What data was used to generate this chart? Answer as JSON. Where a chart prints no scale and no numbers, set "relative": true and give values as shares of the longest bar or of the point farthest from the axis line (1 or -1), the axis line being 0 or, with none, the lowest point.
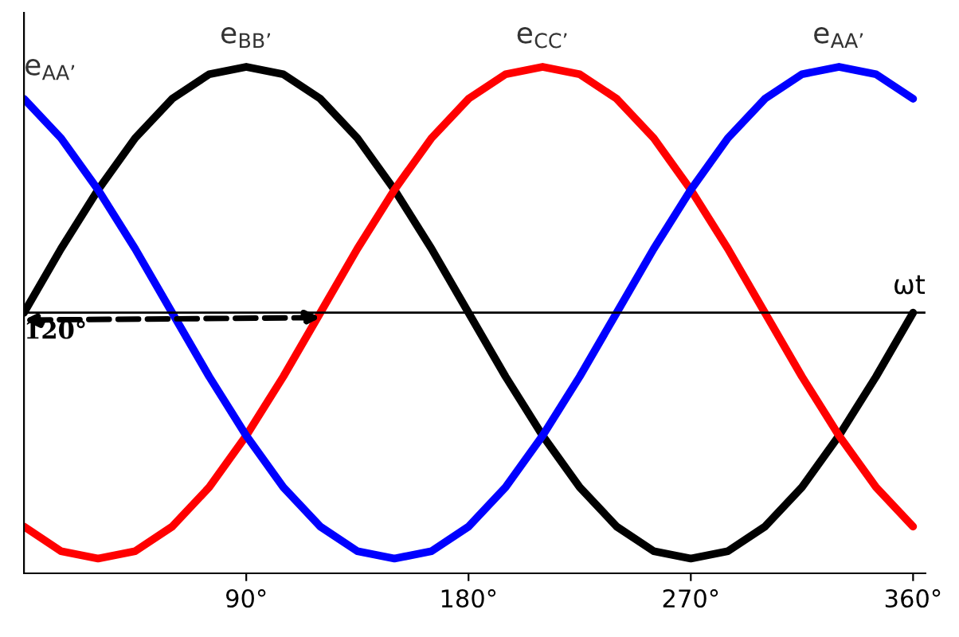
{
  "chart_data": {
    "type": "line",
    "relative": true,
    "x": [
      0,
      15,
      30,
      45,
      60,
      75,
      90,
      105,
      120,
      135,
      150,
      165,
      180,
      195,
      210,
      225,
      240,
      255,
      270,
      285,
      300,
      315,
      330,
      345,
      360
    ],
    "series": [
      {
        "color": "#000000",
        "values": [
          0,
          0.26,
          0.5,
          0.71,
          0.87,
          0.97,
          1,
          0.97,
          0.87,
          0.71,
          0.5,
          0.26,
          0,
          -0.26,
          -0.5,
          -0.71,
          -0.87,
          -0.97,
          -1,
          -0.97,
          -0.87,
          -0.71,
          -0.5,
          -0.26,
          0
        ]
      },
      {
        "color": "#ff0000",
        "values": [
          -0.87,
          -0.97,
          -1,
          -0.97,
          -0.87,
          -0.71,
          -0.5,
          -0.26,
          0,
          0.26,
          0.5,
          0.71,
          0.87,
          0.97,
          1,
          0.97,
          0.87,
          0.71,
          0.5,
          0.26,
          0,
          -0.26,
          -0.5,
          -0.71,
          -0.87
        ]
      },
      {
        "color": "#0000ff",
        "values": [
          0.87,
          0.71,
          0.5,
          0.26,
          0,
          -0.26,
          -0.5,
          -0.71,
          -0.87,
          -0.97,
          -1,
          -0.97,
          -0.87,
          -0.71,
          -0.5,
          -0.26,
          0,
          0.26,
          0.5,
          0.71,
          0.87,
          0.97,
          1,
          0.97,
          0.87
        ]
      }
    ],
    "xlim": [
      0,
      365
    ],
    "xticks": [
      {
        "value": 90,
        "label": "90°"
      },
      {
        "value": 180,
        "label": "180°"
      },
      {
        "value": 270,
        "label": "270°"
      },
      {
        "value": 360,
        "label": "360°"
      }
    ],
    "ref_lines": [
      {
        "axis": "y",
        "value": 0,
        "label": "ωt"
      }
    ],
    "annotations": [
      {
        "text": "e$_{AA’}$",
        "x": 0,
        "y": 0.87
      },
      {
        "text": "e$_{BB’}$",
        "x": 90,
        "y": 1
      },
      {
        "text": "e$_{CC’}$",
        "x": 210,
        "y": 1
      },
      {
        "text": "e$_{AA’}$",
        "x": 330,
        "y": 1
      },
      {
        "text": "120°",
        "x": 120,
        "y": 0
      }
    ],
    "grid": false,
    "legend": false,
    "marker": "none",
    "line_style": "solid"
  }
}
